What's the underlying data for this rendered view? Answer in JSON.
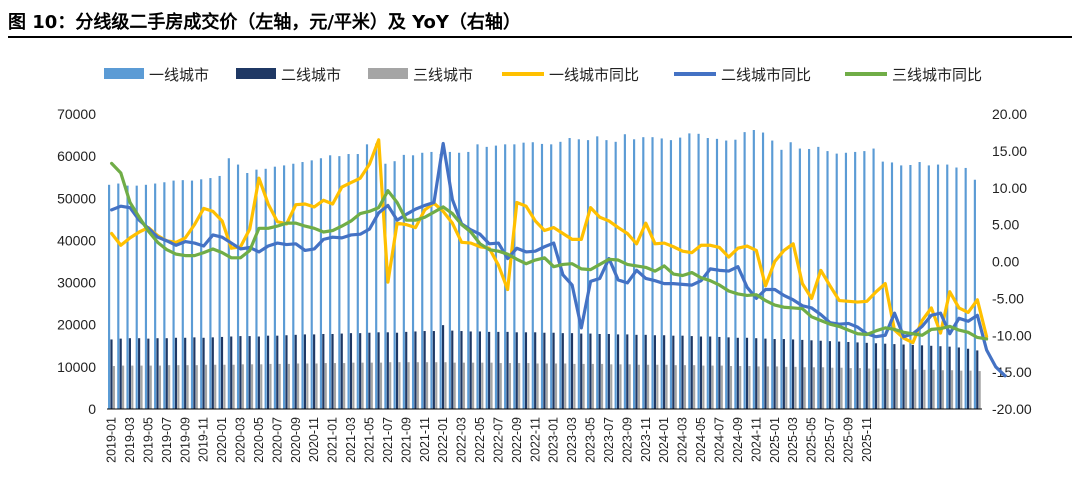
{
  "title": "图 10：分线级二手房成交价（左轴，元/平米）及 YoY（右轴）",
  "chart_data": {
    "type": "bar+line",
    "title": "图 10：分线级二手房成交价（左轴，元/平米）及 YoY（右轴）",
    "legend_position": "top",
    "grid": false,
    "left_axis": {
      "range": [
        0,
        70000
      ],
      "ticks": [
        "0",
        "10000",
        "20000",
        "30000",
        "40000",
        "50000",
        "60000",
        "70000"
      ]
    },
    "right_axis": {
      "range": [
        -20,
        20
      ],
      "ticks": [
        "-20.00",
        "-15.00",
        "-10.00",
        "-5.00",
        "0.00",
        "5.00",
        "10.00",
        "15.00",
        "20.00"
      ]
    },
    "x_tick_labels": [
      "2019-01",
      "2019-03",
      "2019-05",
      "2019-07",
      "2019-09",
      "2019-11",
      "2020-01",
      "2020-03",
      "2020-05",
      "2020-07",
      "2020-09",
      "2020-11",
      "2021-01",
      "2021-03",
      "2021-05",
      "2021-07",
      "2021-09",
      "2021-11",
      "2022-01",
      "2022-03",
      "2022-05",
      "2022-07",
      "2022-09",
      "2022-11",
      "2023-01",
      "2023-03",
      "2023-05",
      "2023-07",
      "2023-09",
      "2023-11",
      "2024-01",
      "2024-03",
      "2024-05",
      "2024-07",
      "2024-09",
      "2024-11",
      "2025-01",
      "2025-03",
      "2025-05",
      "2025-07",
      "2025-09",
      "2025-11"
    ],
    "bar_series": [
      {
        "name": "一线城市",
        "color": "#5b9bd5",
        "axis": "left",
        "values": [
          53200,
          53500,
          53000,
          53000,
          53200,
          53500,
          53800,
          54200,
          54300,
          54200,
          54500,
          54800,
          55300,
          59500,
          58000,
          56000,
          56800,
          57000,
          57500,
          57800,
          58200,
          58600,
          59000,
          59500,
          60200,
          60000,
          60500,
          60500,
          62800,
          63000,
          58200,
          58800,
          60300,
          60200,
          60800,
          61000,
          60500,
          61000,
          60800,
          61000,
          62800,
          62200,
          62500,
          62800,
          62800,
          63200,
          63300,
          62900,
          62800,
          63400,
          64300,
          64000,
          63800,
          64700,
          63800,
          63400,
          65200,
          64000,
          64500,
          64500,
          64200,
          63800,
          64400,
          65400,
          65300,
          64300,
          64100,
          63700,
          63900,
          65700,
          66200,
          65600,
          63700,
          61500,
          63300,
          61800,
          61700,
          62200,
          61200,
          60600,
          60800,
          61000,
          61200,
          61800,
          58700,
          58500,
          57800,
          57900,
          58600,
          57800,
          58000,
          58000,
          57300,
          57200,
          54400
        ]
      },
      {
        "name": "二线城市",
        "color": "#1f3864",
        "axis": "left",
        "values": [
          16500,
          16700,
          16800,
          16800,
          16700,
          16800,
          16800,
          16900,
          16900,
          17000,
          16900,
          17000,
          17100,
          17200,
          17300,
          17300,
          17200,
          17400,
          17400,
          17500,
          17600,
          17700,
          17700,
          17800,
          17800,
          17900,
          18000,
          18000,
          18100,
          18200,
          18200,
          18100,
          18300,
          18400,
          18500,
          18500,
          19900,
          18600,
          18500,
          18400,
          18400,
          18300,
          18300,
          18300,
          18200,
          18200,
          18200,
          18100,
          18100,
          18000,
          18000,
          17900,
          17900,
          17800,
          17800,
          17700,
          17700,
          17600,
          17600,
          17500,
          17500,
          17400,
          17400,
          17300,
          17200,
          17200,
          17100,
          17000,
          16900,
          16900,
          16800,
          16700,
          16600,
          16600,
          16500,
          16400,
          16300,
          16200,
          16100,
          16000,
          15900,
          15800,
          15700,
          15600,
          15500,
          15400,
          15300,
          15200,
          15100,
          15000,
          14900,
          14800,
          14600,
          14300,
          13900
        ]
      },
      {
        "name": "三线城市",
        "color": "#a5a5a5",
        "axis": "left",
        "values": [
          10200,
          10300,
          10300,
          10300,
          10300,
          10300,
          10400,
          10400,
          10400,
          10400,
          10500,
          10500,
          10500,
          10500,
          10600,
          10600,
          10600,
          10700,
          10700,
          10700,
          10800,
          10800,
          10800,
          10900,
          10900,
          10900,
          11000,
          11000,
          11000,
          11000,
          11100,
          11100,
          11100,
          11100,
          11100,
          11100,
          11100,
          11000,
          11000,
          11000,
          11000,
          11000,
          10900,
          10900,
          10900,
          10900,
          10800,
          10800,
          10800,
          10800,
          10700,
          10700,
          10700,
          10700,
          10600,
          10600,
          10600,
          10500,
          10500,
          10500,
          10500,
          10400,
          10400,
          10400,
          10300,
          10300,
          10300,
          10200,
          10200,
          10200,
          10100,
          10100,
          10100,
          10000,
          10000,
          9900,
          9900,
          9900,
          9800,
          9800,
          9700,
          9700,
          9600,
          9600,
          9500,
          9500,
          9400,
          9400,
          9300,
          9300,
          9200,
          9200,
          9100,
          9100,
          9000
        ]
      }
    ],
    "line_series": [
      {
        "name": "一线城市同比",
        "color": "#ffc000",
        "axis": "right",
        "values": [
          3.8,
          2.2,
          3.2,
          4.0,
          4.6,
          3.5,
          2.8,
          2.6,
          3.2,
          5.0,
          7.2,
          6.8,
          5.5,
          1.8,
          2.0,
          4.4,
          11.3,
          7.8,
          5.4,
          5.1,
          7.7,
          7.8,
          7.4,
          8.3,
          7.8,
          10.1,
          10.7,
          11.3,
          13.2,
          16.5,
          -2.8,
          5.2,
          5.0,
          4.6,
          7.0,
          7.9,
          6.8,
          5.2,
          2.6,
          2.5,
          2.0,
          1.8,
          -0.5,
          -3.8,
          8.0,
          7.5,
          5.5,
          4.2,
          4.6,
          3.8,
          3.0,
          3.0,
          7.3,
          6.0,
          5.5,
          4.6,
          3.8,
          2.4,
          5.2,
          2.4,
          2.5,
          2.0,
          1.4,
          1.2,
          2.2,
          2.2,
          1.9,
          0.6,
          1.8,
          2.1,
          1.5,
          -3.3,
          0.0,
          1.5,
          2.4,
          -3.0,
          -5.0,
          -1.2,
          -3.3,
          -5.3,
          -5.4,
          -5.5,
          -5.4,
          -4.1,
          -3.0,
          -9.3,
          -10.4,
          -11.0,
          -8.0,
          -6.3,
          -9.7,
          -4.1,
          -6.3,
          -6.9,
          -5.2,
          -10.2
        ]
      },
      {
        "name": "二线城市同比",
        "color": "#4472c4",
        "axis": "right",
        "values": [
          7.0,
          7.5,
          7.3,
          5.6,
          4.5,
          3.3,
          2.8,
          2.2,
          2.7,
          2.5,
          2.1,
          3.6,
          3.3,
          2.5,
          1.7,
          1.9,
          1.3,
          2.1,
          2.5,
          2.3,
          2.4,
          1.5,
          1.7,
          3.0,
          3.3,
          3.2,
          3.6,
          3.7,
          4.4,
          6.6,
          7.6,
          5.6,
          6.4,
          7.1,
          7.6,
          8.0,
          16.0,
          8.4,
          5.1,
          4.3,
          3.7,
          2.4,
          2.5,
          0.4,
          1.8,
          1.3,
          1.4,
          2.0,
          2.5,
          -1.8,
          -3.2,
          -9.0,
          -2.7,
          -2.3,
          0.4,
          -2.5,
          -2.9,
          -1.2,
          -2.3,
          -2.6,
          -3.0,
          -3.0,
          -3.1,
          -3.2,
          -2.6,
          -1.0,
          -1.2,
          -1.3,
          -0.7,
          -3.5,
          -5.0,
          -3.8,
          -3.8,
          -4.6,
          -5.2,
          -6.0,
          -6.3,
          -7.2,
          -8.3,
          -8.5,
          -8.4,
          -8.9,
          -9.8,
          -10.2,
          -10.0,
          -7.0,
          -10.2,
          -9.8,
          -8.8,
          -7.3,
          -7.0,
          -9.8,
          -7.7,
          -8.1,
          -7.3,
          -12.0,
          -14.3,
          -15.5
        ]
      },
      {
        "name": "三线城市同比",
        "color": "#70ad47",
        "axis": "right",
        "values": [
          13.3,
          12.0,
          8.0,
          6.0,
          4.1,
          2.6,
          1.6,
          1.0,
          0.8,
          0.8,
          1.2,
          1.7,
          1.2,
          0.5,
          0.5,
          1.5,
          4.5,
          4.5,
          4.8,
          5.2,
          5.2,
          4.8,
          4.5,
          4.0,
          4.2,
          4.8,
          5.5,
          6.5,
          6.8,
          7.3,
          9.6,
          8.0,
          5.6,
          5.6,
          6.0,
          6.7,
          7.4,
          6.5,
          5.0,
          4.0,
          2.4,
          1.6,
          1.4,
          1.0,
          0.3,
          -0.3,
          0.2,
          0.5,
          -0.7,
          -0.4,
          -0.3,
          -1.0,
          -1.1,
          -0.4,
          0.3,
          0.2,
          -0.4,
          -0.6,
          -0.8,
          -1.3,
          -0.6,
          -1.7,
          -1.9,
          -1.5,
          -2.2,
          -2.6,
          -3.2,
          -4.0,
          -4.4,
          -4.6,
          -4.5,
          -5.3,
          -5.9,
          -6.2,
          -6.3,
          -6.4,
          -7.5,
          -8.0,
          -8.5,
          -8.8,
          -9.3,
          -9.8,
          -9.9,
          -9.4,
          -9.0,
          -9.2,
          -9.6,
          -9.8,
          -10.0,
          -9.2,
          -9.1,
          -8.8,
          -9.3,
          -9.6,
          -10.3,
          -10.5
        ]
      }
    ]
  }
}
